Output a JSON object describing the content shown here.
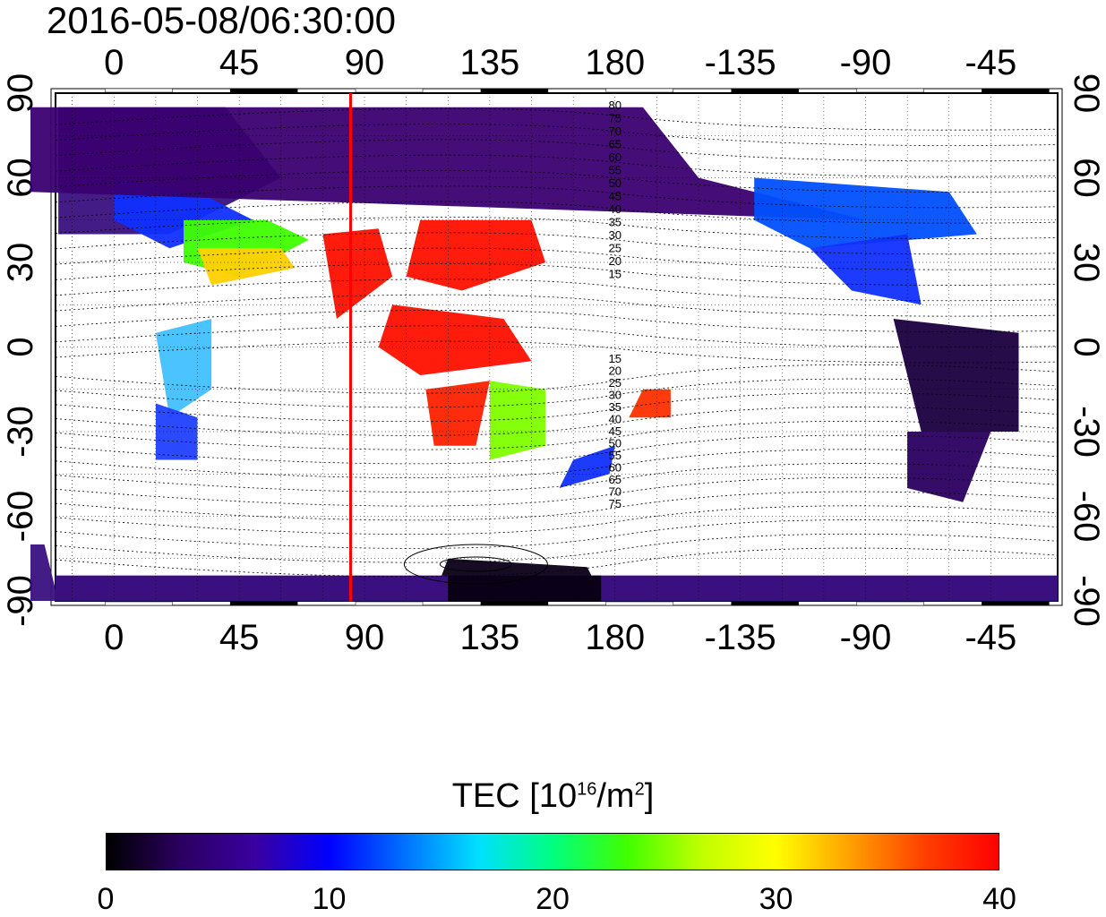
{
  "timestamp": "2016-05-08/06:30:00",
  "map": {
    "top_lon_ticks": [
      "0",
      "45",
      "90",
      "135",
      "180",
      "-135",
      "-90",
      "-45"
    ],
    "bottom_lon_ticks": [
      "0",
      "45",
      "90",
      "135",
      "180",
      "-135",
      "-90",
      "-45"
    ],
    "left_lat_ticks": [
      "90",
      "60",
      "30",
      "0",
      "-30",
      "-60",
      "-90"
    ],
    "right_lat_ticks": [
      "90",
      "60",
      "30",
      "0",
      "-30",
      "-60",
      "-90"
    ],
    "marker_longitude": 85,
    "marker_color": "#ff0000",
    "contour_labels_north": [
      "80",
      "75",
      "70",
      "65",
      "60",
      "55",
      "50",
      "45",
      "40",
      "35",
      "30",
      "25",
      "20",
      "15"
    ],
    "contour_labels_south": [
      "15",
      "20",
      "25",
      "30",
      "35",
      "40",
      "45",
      "50",
      "55",
      "60",
      "65",
      "70",
      "75"
    ]
  },
  "colorbar": {
    "title_prefix": "TEC  [10",
    "title_exp": "16",
    "title_mid": "/m",
    "title_exp2": "2",
    "title_suffix": "]",
    "ticks": [
      "0",
      "10",
      "20",
      "30",
      "40"
    ],
    "min": 0,
    "max": 40,
    "colors": [
      "#000000",
      "#2a0060",
      "#3a00a0",
      "#0000ff",
      "#0070ff",
      "#00e0ff",
      "#00ff80",
      "#40ff00",
      "#c0ff00",
      "#ffff00",
      "#ffa000",
      "#ff4000",
      "#ff0000"
    ]
  }
}
